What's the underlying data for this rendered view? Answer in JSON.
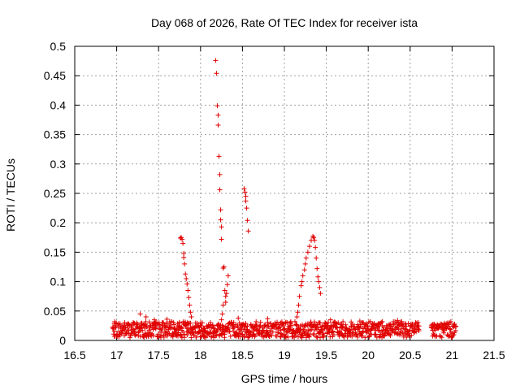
{
  "chart_data": {
    "type": "scatter",
    "title": "Day 068 of 2026, Rate Of TEC Index for receiver ista",
    "xlabel": "GPS time / hours",
    "ylabel": "ROTI / TECUs",
    "xlim": [
      16.5,
      21.5
    ],
    "ylim": [
      0,
      0.5
    ],
    "xticks": [
      "16.5",
      "17",
      "17.5",
      "18",
      "18.5",
      "19",
      "19.5",
      "20",
      "20.5",
      "21",
      "21.5"
    ],
    "yticks": [
      "0",
      "0.05",
      "0.1",
      "0.15",
      "0.2",
      "0.25",
      "0.3",
      "0.35",
      "0.4",
      "0.45",
      "0.5"
    ],
    "grid": true,
    "marker": "+",
    "color": "#e00000",
    "baseline_band": {
      "x_segments": [
        [
          16.95,
          20.6
        ],
        [
          20.75,
          21.05
        ]
      ],
      "y_range": [
        0.005,
        0.032
      ]
    },
    "series": [
      {
        "name": "ROTI",
        "points": [
          [
            18.18,
            0.476
          ],
          [
            18.19,
            0.454
          ],
          [
            18.2,
            0.399
          ],
          [
            18.21,
            0.383
          ],
          [
            18.21,
            0.366
          ],
          [
            18.22,
            0.313
          ],
          [
            18.23,
            0.282
          ],
          [
            18.23,
            0.256
          ],
          [
            18.24,
            0.222
          ],
          [
            18.24,
            0.205
          ],
          [
            18.25,
            0.193
          ],
          [
            18.25,
            0.172
          ],
          [
            18.27,
            0.123
          ],
          [
            18.28,
            0.125
          ],
          [
            18.29,
            0.085
          ],
          [
            18.3,
            0.075
          ],
          [
            18.31,
            0.08
          ],
          [
            18.32,
            0.095
          ],
          [
            18.33,
            0.11
          ],
          [
            18.27,
            0.06
          ],
          [
            18.26,
            0.045
          ],
          [
            18.25,
            0.035
          ],
          [
            18.3,
            0.065
          ],
          [
            17.76,
            0.174
          ],
          [
            17.77,
            0.175
          ],
          [
            17.78,
            0.172
          ],
          [
            17.79,
            0.165
          ],
          [
            17.8,
            0.148
          ],
          [
            17.8,
            0.141
          ],
          [
            17.81,
            0.13
          ],
          [
            17.82,
            0.113
          ],
          [
            17.83,
            0.105
          ],
          [
            17.84,
            0.096
          ],
          [
            17.85,
            0.085
          ],
          [
            17.86,
            0.073
          ],
          [
            17.87,
            0.06
          ],
          [
            17.88,
            0.048
          ],
          [
            17.89,
            0.04
          ],
          [
            17.75,
            0.03
          ],
          [
            17.73,
            0.025
          ],
          [
            18.52,
            0.258
          ],
          [
            18.53,
            0.252
          ],
          [
            18.54,
            0.245
          ],
          [
            18.54,
            0.237
          ],
          [
            18.55,
            0.225
          ],
          [
            18.56,
            0.204
          ],
          [
            18.57,
            0.186
          ],
          [
            19.2,
            0.093
          ],
          [
            19.21,
            0.1
          ],
          [
            19.22,
            0.11
          ],
          [
            19.24,
            0.12
          ],
          [
            19.25,
            0.13
          ],
          [
            19.26,
            0.14
          ],
          [
            19.28,
            0.15
          ],
          [
            19.3,
            0.16
          ],
          [
            19.32,
            0.17
          ],
          [
            19.34,
            0.177
          ],
          [
            19.35,
            0.175
          ],
          [
            19.36,
            0.17
          ],
          [
            19.37,
            0.158
          ],
          [
            19.38,
            0.14
          ],
          [
            19.39,
            0.122
          ],
          [
            19.4,
            0.108
          ],
          [
            19.41,
            0.1
          ],
          [
            19.42,
            0.09
          ],
          [
            19.43,
            0.08
          ],
          [
            19.18,
            0.075
          ],
          [
            19.17,
            0.06
          ],
          [
            19.16,
            0.048
          ],
          [
            19.15,
            0.04
          ],
          [
            17.28,
            0.045
          ],
          [
            17.35,
            0.04
          ],
          [
            17.45,
            0.035
          ],
          [
            17.6,
            0.036
          ],
          [
            18.45,
            0.038
          ],
          [
            18.8,
            0.037
          ],
          [
            19.55,
            0.035
          ],
          [
            19.9,
            0.033
          ],
          [
            20.35,
            0.034
          ]
        ]
      }
    ]
  }
}
